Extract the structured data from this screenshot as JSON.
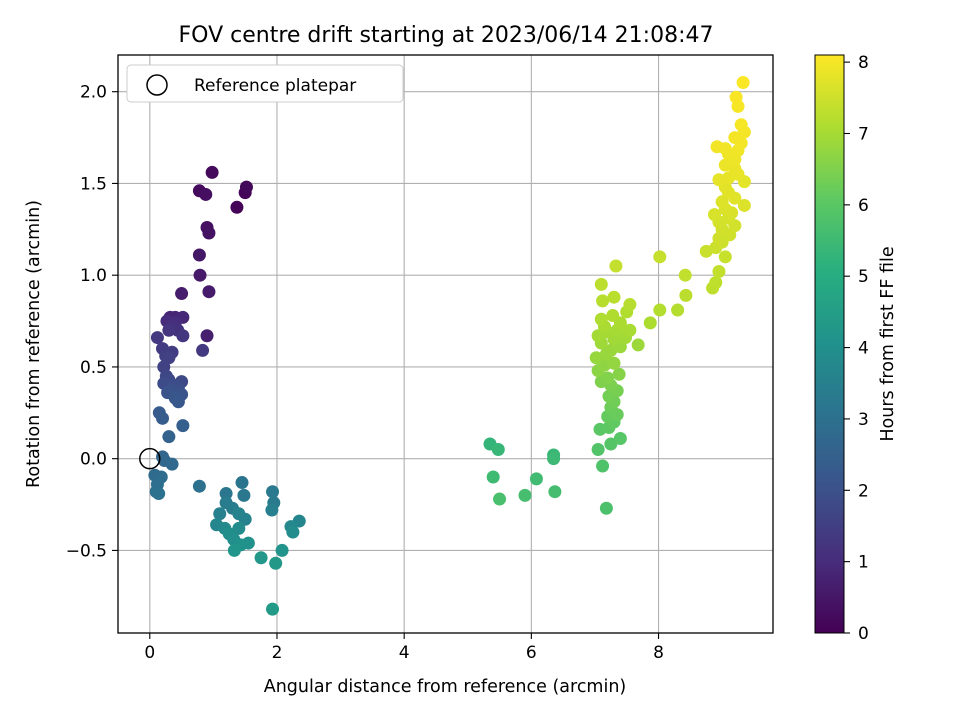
{
  "chart_data": {
    "type": "scatter",
    "title": "FOV centre drift starting at 2023/06/14 21:08:47",
    "xlabel": "Angular distance from reference (arcmin)",
    "ylabel": "Rotation from reference (arcmin)",
    "xlim": [
      -0.5,
      9.8
    ],
    "ylim": [
      -0.95,
      2.2
    ],
    "xticks": [
      0,
      2,
      4,
      6,
      8
    ],
    "yticks": [
      -0.5,
      0.0,
      0.5,
      1.0,
      1.5,
      2.0
    ],
    "xtick_labels": [
      "0",
      "2",
      "4",
      "6",
      "8"
    ],
    "ytick_labels": [
      "−0.5",
      "0.0",
      "0.5",
      "1.0",
      "1.5",
      "2.0"
    ],
    "grid": true,
    "colormap": "viridis",
    "colorbar": {
      "label": "Hours from first FF file",
      "range": [
        0,
        8.1
      ],
      "ticks": [
        0,
        1,
        2,
        3,
        4,
        5,
        6,
        7,
        8
      ],
      "tick_labels": [
        "0",
        "1",
        "2",
        "3",
        "4",
        "5",
        "6",
        "7",
        "8"
      ]
    },
    "reference": {
      "x": 0,
      "y": 0,
      "label": "Reference platepar",
      "legend_position": "upper-left"
    },
    "points": [
      {
        "x": 1.37,
        "y": 1.37,
        "h": 0.05
      },
      {
        "x": 1.5,
        "y": 1.45,
        "h": 0.1
      },
      {
        "x": 1.52,
        "y": 1.48,
        "h": 0.15
      },
      {
        "x": 0.98,
        "y": 1.56,
        "h": 0.2
      },
      {
        "x": 0.78,
        "y": 1.46,
        "h": 0.25
      },
      {
        "x": 0.88,
        "y": 1.44,
        "h": 0.3
      },
      {
        "x": 0.9,
        "y": 1.26,
        "h": 0.35
      },
      {
        "x": 0.93,
        "y": 1.23,
        "h": 0.4
      },
      {
        "x": 0.78,
        "y": 1.11,
        "h": 0.5
      },
      {
        "x": 0.79,
        "y": 1.0,
        "h": 0.55
      },
      {
        "x": 0.93,
        "y": 0.91,
        "h": 0.6
      },
      {
        "x": 0.5,
        "y": 0.9,
        "h": 0.65
      },
      {
        "x": 0.9,
        "y": 0.67,
        "h": 0.7
      },
      {
        "x": 0.32,
        "y": 0.77,
        "h": 0.8
      },
      {
        "x": 0.4,
        "y": 0.77,
        "h": 0.85
      },
      {
        "x": 0.52,
        "y": 0.77,
        "h": 0.9
      },
      {
        "x": 0.27,
        "y": 0.75,
        "h": 1.0
      },
      {
        "x": 0.4,
        "y": 0.74,
        "h": 1.05
      },
      {
        "x": 0.35,
        "y": 0.72,
        "h": 1.1
      },
      {
        "x": 0.44,
        "y": 0.7,
        "h": 1.15
      },
      {
        "x": 0.3,
        "y": 0.7,
        "h": 1.2
      },
      {
        "x": 0.52,
        "y": 0.67,
        "h": 1.25
      },
      {
        "x": 0.12,
        "y": 0.66,
        "h": 1.3
      },
      {
        "x": 0.83,
        "y": 0.59,
        "h": 1.35
      },
      {
        "x": 0.2,
        "y": 0.6,
        "h": 1.4
      },
      {
        "x": 0.35,
        "y": 0.58,
        "h": 1.45
      },
      {
        "x": 0.25,
        "y": 0.56,
        "h": 1.5
      },
      {
        "x": 0.3,
        "y": 0.55,
        "h": 1.55
      },
      {
        "x": 0.22,
        "y": 0.5,
        "h": 1.6
      },
      {
        "x": 0.26,
        "y": 0.45,
        "h": 1.7
      },
      {
        "x": 0.3,
        "y": 0.43,
        "h": 1.75
      },
      {
        "x": 0.5,
        "y": 0.42,
        "h": 1.8
      },
      {
        "x": 0.22,
        "y": 0.41,
        "h": 1.85
      },
      {
        "x": 0.38,
        "y": 0.4,
        "h": 1.9
      },
      {
        "x": 0.45,
        "y": 0.38,
        "h": 1.95
      },
      {
        "x": 0.33,
        "y": 0.37,
        "h": 2.0
      },
      {
        "x": 0.28,
        "y": 0.36,
        "h": 2.05
      },
      {
        "x": 0.5,
        "y": 0.35,
        "h": 2.1
      },
      {
        "x": 0.4,
        "y": 0.33,
        "h": 2.15
      },
      {
        "x": 0.45,
        "y": 0.31,
        "h": 2.2
      },
      {
        "x": 0.15,
        "y": 0.25,
        "h": 2.3
      },
      {
        "x": 0.2,
        "y": 0.22,
        "h": 2.35
      },
      {
        "x": 0.52,
        "y": 0.18,
        "h": 2.45
      },
      {
        "x": 0.3,
        "y": 0.12,
        "h": 2.55
      },
      {
        "x": 0.2,
        "y": 0.01,
        "h": 2.65
      },
      {
        "x": 0.23,
        "y": -0.01,
        "h": 2.7
      },
      {
        "x": 0.35,
        "y": -0.03,
        "h": 2.75
      },
      {
        "x": 0.08,
        "y": -0.09,
        "h": 2.8
      },
      {
        "x": 0.18,
        "y": -0.1,
        "h": 2.85
      },
      {
        "x": 0.12,
        "y": -0.14,
        "h": 2.9
      },
      {
        "x": 0.1,
        "y": -0.18,
        "h": 2.95
      },
      {
        "x": 0.78,
        "y": -0.15,
        "h": 3.0
      },
      {
        "x": 0.14,
        "y": -0.19,
        "h": 3.05
      },
      {
        "x": 1.45,
        "y": -0.13,
        "h": 3.1
      },
      {
        "x": 1.2,
        "y": -0.19,
        "h": 3.15
      },
      {
        "x": 1.48,
        "y": -0.2,
        "h": 3.2
      },
      {
        "x": 1.93,
        "y": -0.18,
        "h": 3.25
      },
      {
        "x": 1.95,
        "y": -0.24,
        "h": 3.3
      },
      {
        "x": 1.2,
        "y": -0.24,
        "h": 3.35
      },
      {
        "x": 1.3,
        "y": -0.27,
        "h": 3.4
      },
      {
        "x": 1.92,
        "y": -0.28,
        "h": 3.45
      },
      {
        "x": 1.1,
        "y": -0.3,
        "h": 3.5
      },
      {
        "x": 1.4,
        "y": -0.3,
        "h": 3.55
      },
      {
        "x": 1.5,
        "y": -0.33,
        "h": 3.6
      },
      {
        "x": 2.35,
        "y": -0.34,
        "h": 3.65
      },
      {
        "x": 1.05,
        "y": -0.36,
        "h": 3.7
      },
      {
        "x": 2.22,
        "y": -0.37,
        "h": 3.75
      },
      {
        "x": 1.18,
        "y": -0.38,
        "h": 3.8
      },
      {
        "x": 1.4,
        "y": -0.38,
        "h": 3.85
      },
      {
        "x": 2.25,
        "y": -0.4,
        "h": 3.9
      },
      {
        "x": 1.25,
        "y": -0.41,
        "h": 3.95
      },
      {
        "x": 1.32,
        "y": -0.44,
        "h": 4.0
      },
      {
        "x": 1.55,
        "y": -0.46,
        "h": 4.05
      },
      {
        "x": 1.43,
        "y": -0.47,
        "h": 4.1
      },
      {
        "x": 2.08,
        "y": -0.5,
        "h": 4.15
      },
      {
        "x": 1.33,
        "y": -0.5,
        "h": 4.2
      },
      {
        "x": 1.75,
        "y": -0.54,
        "h": 4.25
      },
      {
        "x": 1.98,
        "y": -0.57,
        "h": 4.3
      },
      {
        "x": 1.93,
        "y": -0.82,
        "h": 4.35
      },
      {
        "x": 5.35,
        "y": 0.08,
        "h": 5.3
      },
      {
        "x": 5.48,
        "y": 0.05,
        "h": 5.35
      },
      {
        "x": 6.35,
        "y": 0.02,
        "h": 5.4
      },
      {
        "x": 6.35,
        "y": 0.0,
        "h": 5.45
      },
      {
        "x": 5.4,
        "y": -0.1,
        "h": 5.5
      },
      {
        "x": 6.08,
        "y": -0.11,
        "h": 5.55
      },
      {
        "x": 6.37,
        "y": -0.18,
        "h": 5.6
      },
      {
        "x": 5.9,
        "y": -0.2,
        "h": 5.65
      },
      {
        "x": 5.5,
        "y": -0.22,
        "h": 5.7
      },
      {
        "x": 7.18,
        "y": -0.27,
        "h": 5.75
      },
      {
        "x": 7.12,
        "y": -0.04,
        "h": 5.8
      },
      {
        "x": 7.05,
        "y": 0.05,
        "h": 5.85
      },
      {
        "x": 7.25,
        "y": 0.08,
        "h": 5.9
      },
      {
        "x": 7.4,
        "y": 0.11,
        "h": 5.95
      },
      {
        "x": 7.08,
        "y": 0.16,
        "h": 6.0
      },
      {
        "x": 7.22,
        "y": 0.17,
        "h": 6.05
      },
      {
        "x": 7.3,
        "y": 0.2,
        "h": 6.1
      },
      {
        "x": 7.2,
        "y": 0.23,
        "h": 6.15
      },
      {
        "x": 7.35,
        "y": 0.24,
        "h": 6.2
      },
      {
        "x": 7.25,
        "y": 0.28,
        "h": 6.25
      },
      {
        "x": 7.3,
        "y": 0.31,
        "h": 6.3
      },
      {
        "x": 7.22,
        "y": 0.34,
        "h": 6.35
      },
      {
        "x": 7.35,
        "y": 0.37,
        "h": 6.4
      },
      {
        "x": 7.25,
        "y": 0.4,
        "h": 6.45
      },
      {
        "x": 7.1,
        "y": 0.42,
        "h": 6.5
      },
      {
        "x": 7.2,
        "y": 0.44,
        "h": 6.55
      },
      {
        "x": 7.38,
        "y": 0.46,
        "h": 6.6
      },
      {
        "x": 7.05,
        "y": 0.48,
        "h": 6.65
      },
      {
        "x": 7.15,
        "y": 0.51,
        "h": 6.7
      },
      {
        "x": 7.3,
        "y": 0.52,
        "h": 6.75
      },
      {
        "x": 7.02,
        "y": 0.55,
        "h": 6.8
      },
      {
        "x": 7.18,
        "y": 0.57,
        "h": 6.82
      },
      {
        "x": 7.25,
        "y": 0.59,
        "h": 6.84
      },
      {
        "x": 7.4,
        "y": 0.61,
        "h": 6.86
      },
      {
        "x": 7.68,
        "y": 0.62,
        "h": 6.88
      },
      {
        "x": 7.1,
        "y": 0.63,
        "h": 6.9
      },
      {
        "x": 7.3,
        "y": 0.65,
        "h": 6.92
      },
      {
        "x": 7.48,
        "y": 0.66,
        "h": 6.94
      },
      {
        "x": 7.05,
        "y": 0.67,
        "h": 6.96
      },
      {
        "x": 7.2,
        "y": 0.69,
        "h": 6.98
      },
      {
        "x": 7.35,
        "y": 0.7,
        "h": 7.0
      },
      {
        "x": 7.55,
        "y": 0.7,
        "h": 7.02
      },
      {
        "x": 7.15,
        "y": 0.72,
        "h": 7.04
      },
      {
        "x": 7.4,
        "y": 0.74,
        "h": 7.06
      },
      {
        "x": 7.87,
        "y": 0.74,
        "h": 7.08
      },
      {
        "x": 7.1,
        "y": 0.76,
        "h": 7.1
      },
      {
        "x": 7.28,
        "y": 0.78,
        "h": 7.12
      },
      {
        "x": 7.5,
        "y": 0.8,
        "h": 7.14
      },
      {
        "x": 8.02,
        "y": 0.81,
        "h": 7.16
      },
      {
        "x": 8.3,
        "y": 0.81,
        "h": 7.18
      },
      {
        "x": 7.55,
        "y": 0.84,
        "h": 7.2
      },
      {
        "x": 7.12,
        "y": 0.86,
        "h": 7.22
      },
      {
        "x": 7.3,
        "y": 0.88,
        "h": 7.24
      },
      {
        "x": 8.43,
        "y": 0.89,
        "h": 7.26
      },
      {
        "x": 7.1,
        "y": 0.95,
        "h": 7.28
      },
      {
        "x": 8.85,
        "y": 0.93,
        "h": 7.3
      },
      {
        "x": 8.9,
        "y": 0.96,
        "h": 7.32
      },
      {
        "x": 8.42,
        "y": 1.0,
        "h": 7.34
      },
      {
        "x": 8.95,
        "y": 1.02,
        "h": 7.36
      },
      {
        "x": 7.33,
        "y": 1.05,
        "h": 7.38
      },
      {
        "x": 8.02,
        "y": 1.1,
        "h": 7.4
      },
      {
        "x": 9.05,
        "y": 1.1,
        "h": 7.42
      },
      {
        "x": 8.75,
        "y": 1.13,
        "h": 7.44
      },
      {
        "x": 8.9,
        "y": 1.15,
        "h": 7.46
      },
      {
        "x": 9.0,
        "y": 1.18,
        "h": 7.48
      },
      {
        "x": 8.95,
        "y": 1.2,
        "h": 7.5
      },
      {
        "x": 9.12,
        "y": 1.22,
        "h": 7.52
      },
      {
        "x": 9.0,
        "y": 1.25,
        "h": 7.54
      },
      {
        "x": 9.2,
        "y": 1.27,
        "h": 7.56
      },
      {
        "x": 8.95,
        "y": 1.29,
        "h": 7.58
      },
      {
        "x": 9.1,
        "y": 1.31,
        "h": 7.6
      },
      {
        "x": 8.88,
        "y": 1.33,
        "h": 7.62
      },
      {
        "x": 9.15,
        "y": 1.34,
        "h": 7.64
      },
      {
        "x": 9.05,
        "y": 1.36,
        "h": 7.66
      },
      {
        "x": 9.35,
        "y": 1.38,
        "h": 7.68
      },
      {
        "x": 9.0,
        "y": 1.4,
        "h": 7.7
      },
      {
        "x": 9.2,
        "y": 1.42,
        "h": 7.72
      },
      {
        "x": 9.1,
        "y": 1.45,
        "h": 7.74
      },
      {
        "x": 9.05,
        "y": 1.48,
        "h": 7.76
      },
      {
        "x": 9.35,
        "y": 1.51,
        "h": 7.78
      },
      {
        "x": 8.95,
        "y": 1.52,
        "h": 7.8
      },
      {
        "x": 9.1,
        "y": 1.53,
        "h": 7.82
      },
      {
        "x": 9.25,
        "y": 1.55,
        "h": 7.84
      },
      {
        "x": 9.2,
        "y": 1.58,
        "h": 7.86
      },
      {
        "x": 9.05,
        "y": 1.6,
        "h": 7.88
      },
      {
        "x": 9.2,
        "y": 1.63,
        "h": 7.9
      },
      {
        "x": 9.1,
        "y": 1.66,
        "h": 7.92
      },
      {
        "x": 9.25,
        "y": 1.68,
        "h": 7.94
      },
      {
        "x": 9.05,
        "y": 1.69,
        "h": 7.95
      },
      {
        "x": 8.92,
        "y": 1.7,
        "h": 7.96
      },
      {
        "x": 9.3,
        "y": 1.72,
        "h": 7.97
      },
      {
        "x": 9.2,
        "y": 1.75,
        "h": 7.98
      },
      {
        "x": 9.35,
        "y": 1.78,
        "h": 7.99
      },
      {
        "x": 9.3,
        "y": 1.82,
        "h": 8.0
      },
      {
        "x": 9.25,
        "y": 1.92,
        "h": 8.02
      },
      {
        "x": 9.22,
        "y": 1.97,
        "h": 8.04
      },
      {
        "x": 9.33,
        "y": 2.05,
        "h": 8.06
      }
    ]
  }
}
